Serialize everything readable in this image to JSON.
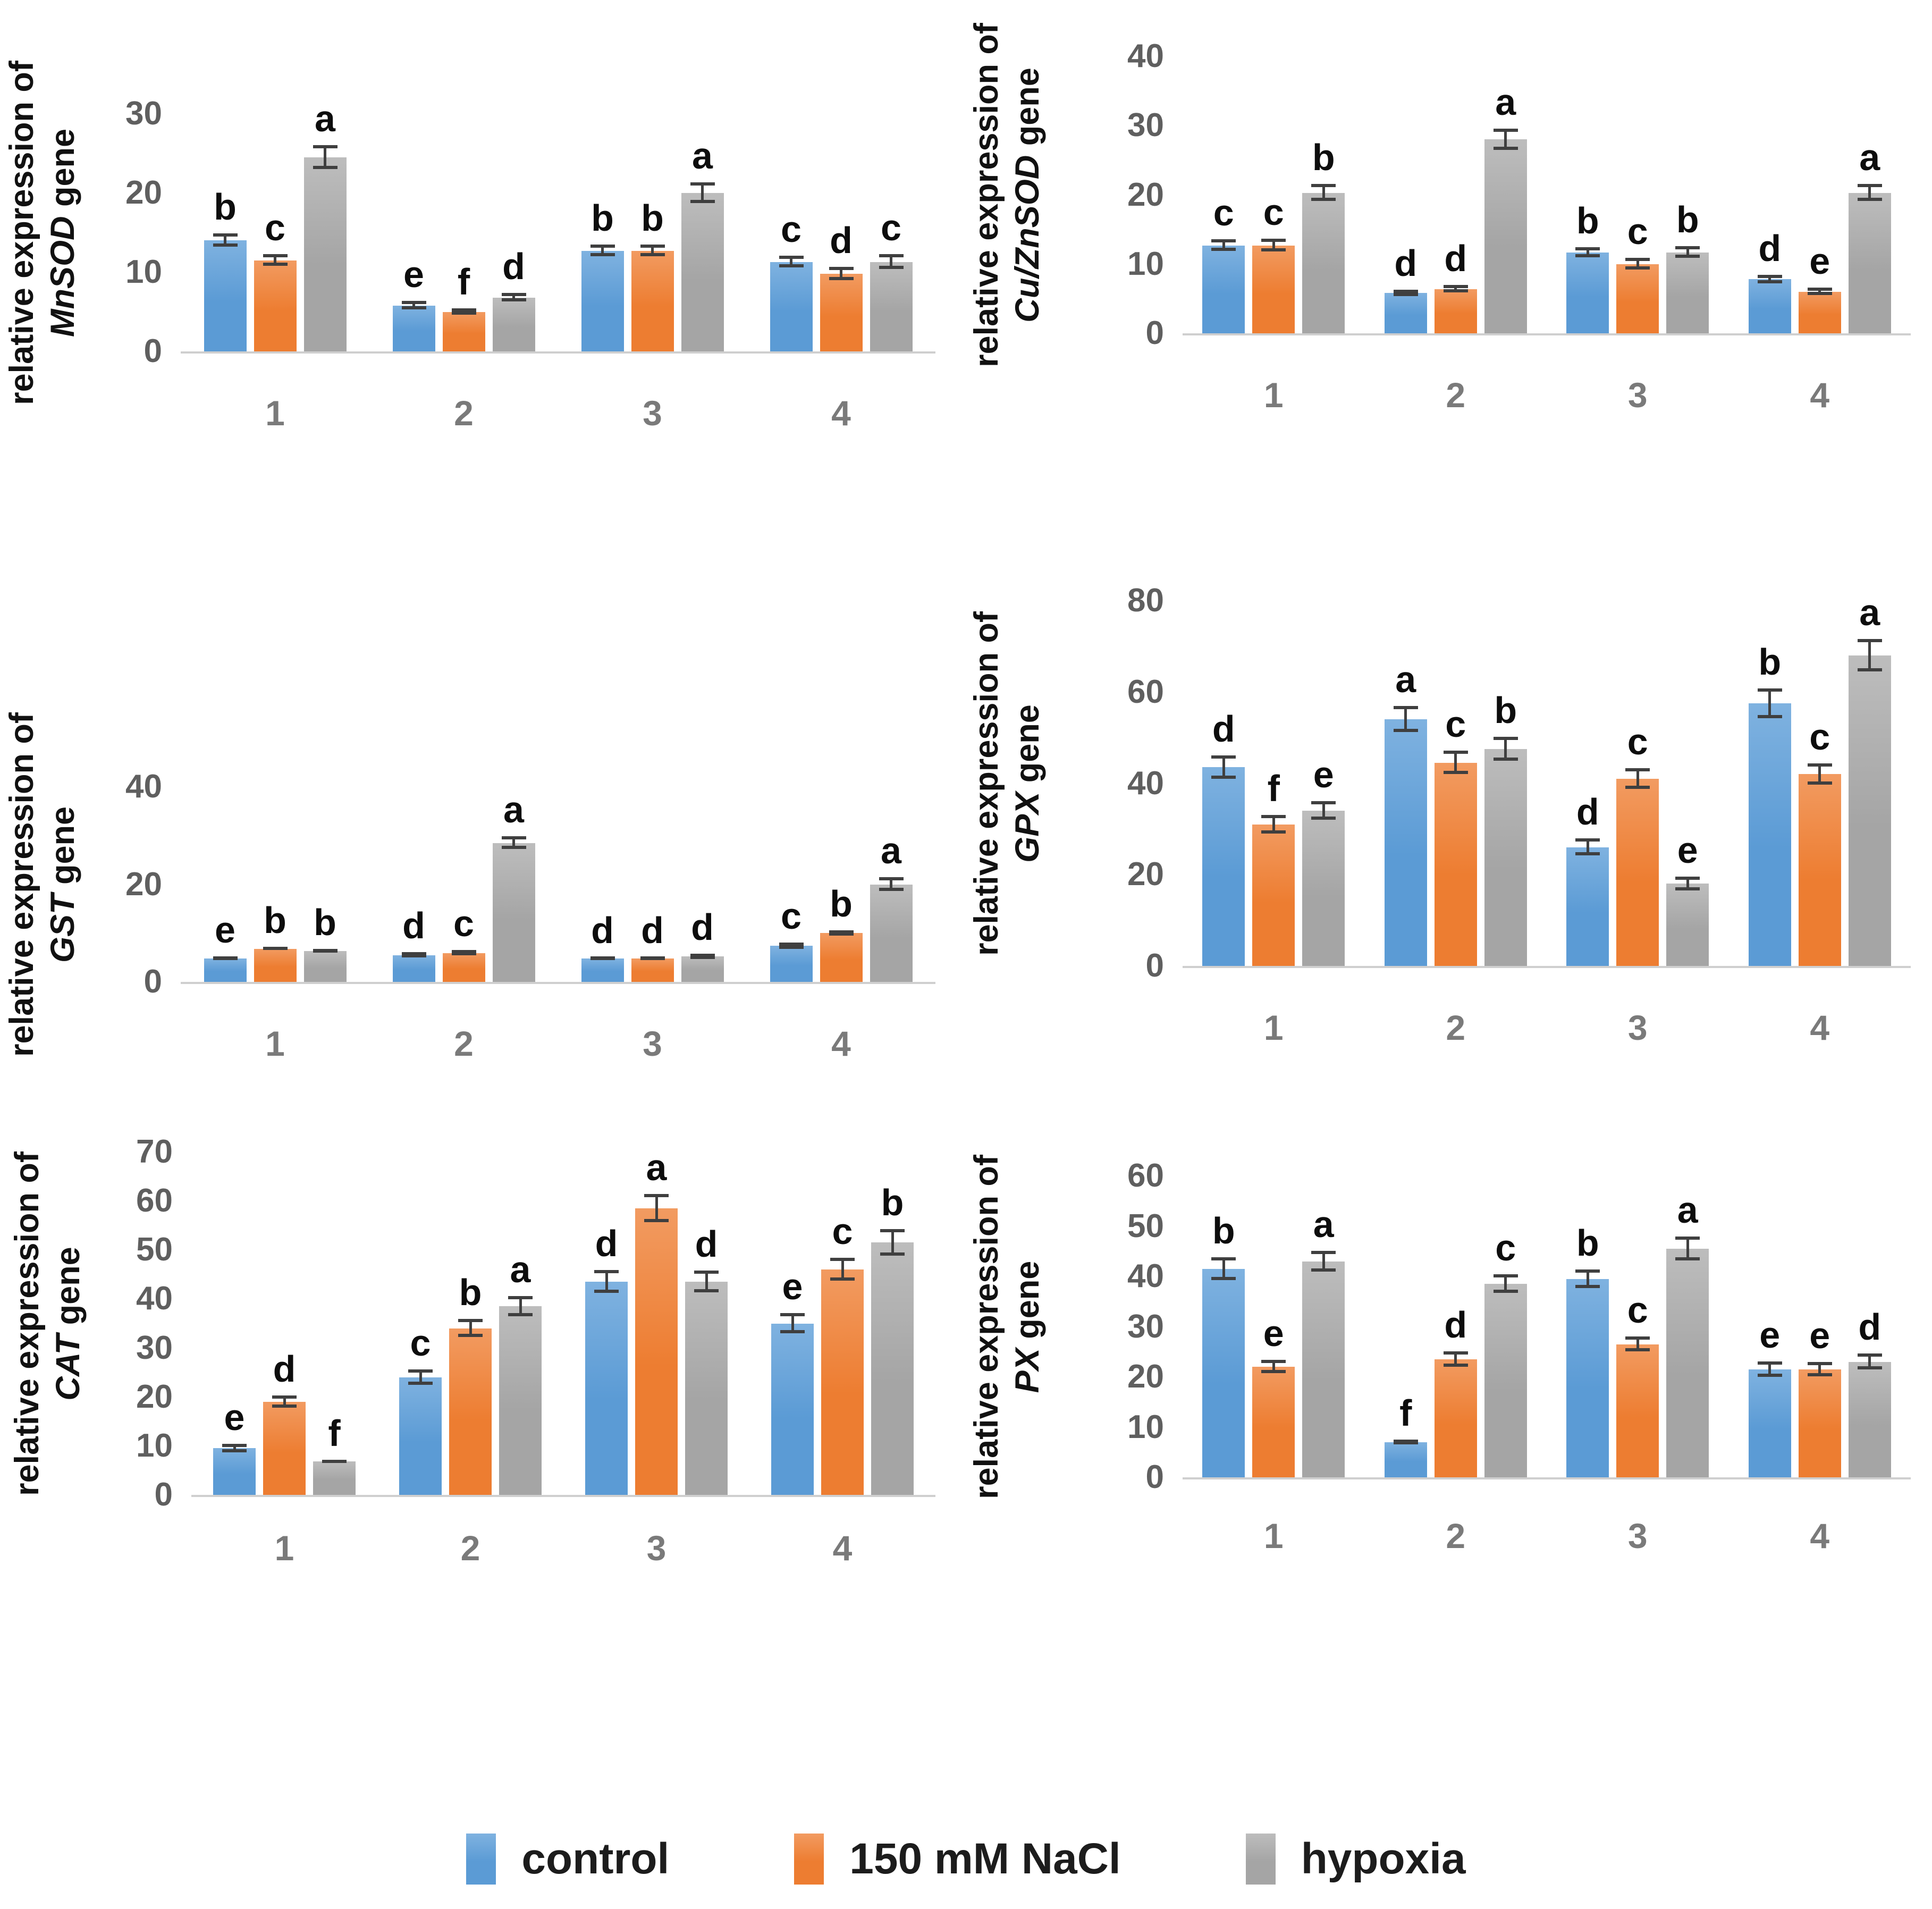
{
  "colors": {
    "control": "#5B9BD5",
    "control_light": "#7fb2e0",
    "nacl": "#ED7D31",
    "nacl_light": "#f29b61",
    "hypoxia": "#A5A5A5",
    "hypoxia_light": "#bdbdbd",
    "tick_label": "#5f5f5f",
    "category_label": "#7a7a7a",
    "sig_letter": "#0d0d0d",
    "error_bar": "#3f3f3f",
    "axis_line": "#cfcfcf"
  },
  "legend": {
    "items": [
      {
        "label": "control",
        "color_key": "control"
      },
      {
        "label": "150 mM NaCl",
        "color_key": "nacl"
      },
      {
        "label": "hypoxia",
        "color_key": "hypoxia"
      }
    ]
  },
  "chart_data": [
    {
      "id": "mnsod",
      "type": "bar",
      "ylabel_line1": "relative expression of",
      "gene": "MnSOD",
      "gene_suffix": "gene",
      "categories": [
        "1",
        "2",
        "3",
        "4"
      ],
      "ylim": [
        0,
        30
      ],
      "yticks": [
        0,
        10,
        20,
        30
      ],
      "grid": false,
      "legend_position": "shared-bottom",
      "series": [
        {
          "name": "control",
          "color_key": "control",
          "values": [
            14,
            5.8,
            12.7,
            11.3
          ],
          "errors": [
            0.8,
            0.5,
            0.7,
            0.7
          ],
          "letters": [
            "b",
            "e",
            "b",
            "c"
          ]
        },
        {
          "name": "150 mM NaCl",
          "color_key": "nacl",
          "values": [
            11.5,
            5.0,
            12.7,
            9.8
          ],
          "errors": [
            0.7,
            0.4,
            0.7,
            0.8
          ],
          "letters": [
            "c",
            "f",
            "b",
            "d"
          ]
        },
        {
          "name": "hypoxia",
          "color_key": "hypoxia",
          "values": [
            24.5,
            6.8,
            20.0,
            11.3
          ],
          "errors": [
            1.5,
            0.5,
            1.3,
            0.9
          ],
          "letters": [
            "a",
            "d",
            "a",
            "c"
          ]
        }
      ]
    },
    {
      "id": "cuznsod",
      "type": "bar",
      "ylabel_line1": "relative expression of",
      "gene": "Cu/ZnSOD",
      "gene_suffix": "gene",
      "categories": [
        "1",
        "2",
        "3",
        "4"
      ],
      "ylim": [
        0,
        40
      ],
      "yticks": [
        0,
        10,
        20,
        30,
        40
      ],
      "grid": false,
      "legend_position": "shared-bottom",
      "series": [
        {
          "name": "control",
          "color_key": "control",
          "values": [
            12.7,
            5.8,
            11.7,
            7.8
          ],
          "errors": [
            0.8,
            0.4,
            0.7,
            0.6
          ],
          "letters": [
            "c",
            "d",
            "b",
            "d"
          ]
        },
        {
          "name": "150 mM NaCl",
          "color_key": "nacl",
          "values": [
            12.7,
            6.4,
            10.0,
            6.0
          ],
          "errors": [
            0.9,
            0.5,
            0.8,
            0.5
          ],
          "letters": [
            "c",
            "d",
            "c",
            "e"
          ]
        },
        {
          "name": "hypoxia",
          "color_key": "hypoxia",
          "values": [
            20.3,
            28.0,
            11.7,
            20.3
          ],
          "errors": [
            1.2,
            1.5,
            0.8,
            1.2
          ],
          "letters": [
            "b",
            "a",
            "b",
            "a"
          ]
        }
      ]
    },
    {
      "id": "gst",
      "type": "bar",
      "ylabel_line1": "relative expression of",
      "gene": "GST",
      "gene_suffix": "gene",
      "categories": [
        "1",
        "2",
        "3",
        "4"
      ],
      "ylim": [
        0,
        40
      ],
      "yticks": [
        0,
        20,
        40
      ],
      "grid": false,
      "legend_position": "shared-bottom",
      "series": [
        {
          "name": "control",
          "color_key": "control",
          "values": [
            4.8,
            5.5,
            4.8,
            7.4
          ],
          "errors": [
            0.3,
            0.5,
            0.2,
            0.6
          ],
          "letters": [
            "e",
            "d",
            "d",
            "c"
          ]
        },
        {
          "name": "150 mM NaCl",
          "color_key": "nacl",
          "values": [
            6.8,
            5.9,
            4.8,
            10.0
          ],
          "errors": [
            0.3,
            0.5,
            0.2,
            0.5
          ],
          "letters": [
            "b",
            "c",
            "d",
            "b"
          ]
        },
        {
          "name": "hypoxia",
          "color_key": "hypoxia",
          "values": [
            6.3,
            28.5,
            5.2,
            20.0
          ],
          "errors": [
            0.3,
            1.3,
            0.5,
            1.4
          ],
          "letters": [
            "b",
            "a",
            "d",
            "a"
          ]
        }
      ]
    },
    {
      "id": "gpx",
      "type": "bar",
      "ylabel_line1": "relative expression of",
      "gene": "GPX",
      "gene_suffix": "gene",
      "categories": [
        "1",
        "2",
        "3",
        "4"
      ],
      "ylim": [
        0,
        80
      ],
      "yticks": [
        0,
        20,
        40,
        60,
        80
      ],
      "grid": false,
      "legend_position": "shared-bottom",
      "series": [
        {
          "name": "control",
          "color_key": "control",
          "values": [
            43.5,
            54.0,
            26.0,
            57.5
          ],
          "errors": [
            2.5,
            2.8,
            1.8,
            3.2
          ],
          "letters": [
            "d",
            "a",
            "d",
            "b"
          ]
        },
        {
          "name": "150 mM NaCl",
          "color_key": "nacl",
          "values": [
            31.0,
            44.5,
            41.0,
            42.0
          ],
          "errors": [
            2.0,
            2.5,
            2.2,
            2.3
          ],
          "letters": [
            "f",
            "c",
            "c",
            "c"
          ]
        },
        {
          "name": "hypoxia",
          "color_key": "hypoxia",
          "values": [
            34.0,
            47.5,
            18.0,
            68.0
          ],
          "errors": [
            2.0,
            2.6,
            1.5,
            3.5
          ],
          "letters": [
            "e",
            "b",
            "e",
            "a"
          ]
        }
      ]
    },
    {
      "id": "cat",
      "type": "bar",
      "ylabel_line1": "relative expression of",
      "gene": "CAT",
      "gene_suffix": "gene",
      "categories": [
        "1",
        "2",
        "3",
        "4"
      ],
      "ylim": [
        0,
        70
      ],
      "yticks": [
        0,
        10,
        20,
        30,
        40,
        50,
        60,
        70
      ],
      "grid": false,
      "legend_position": "shared-bottom",
      "series": [
        {
          "name": "control",
          "color_key": "control",
          "values": [
            9.5,
            24.0,
            43.5,
            35.0
          ],
          "errors": [
            0.8,
            1.5,
            2.3,
            2.0
          ],
          "letters": [
            "e",
            "c",
            "d",
            "e"
          ]
        },
        {
          "name": "150 mM NaCl",
          "color_key": "nacl",
          "values": [
            19.0,
            34.0,
            58.5,
            46.0
          ],
          "errors": [
            1.2,
            1.8,
            2.8,
            2.3
          ],
          "letters": [
            "d",
            "b",
            "a",
            "c"
          ]
        },
        {
          "name": "hypoxia",
          "color_key": "hypoxia",
          "values": [
            6.8,
            38.5,
            43.5,
            51.5
          ],
          "errors": [
            0.3,
            2.0,
            2.2,
            2.7
          ],
          "letters": [
            "f",
            "a",
            "d",
            "b"
          ]
        }
      ]
    },
    {
      "id": "px",
      "type": "bar",
      "ylabel_line1": "relative expression of",
      "gene": "PX",
      "gene_suffix": "gene",
      "categories": [
        "1",
        "2",
        "3",
        "4"
      ],
      "ylim": [
        0,
        60
      ],
      "yticks": [
        0,
        10,
        20,
        30,
        40,
        50,
        60
      ],
      "grid": false,
      "legend_position": "shared-bottom",
      "series": [
        {
          "name": "control",
          "color_key": "control",
          "values": [
            41.5,
            7.0,
            39.5,
            21.5
          ],
          "errors": [
            2.2,
            0.4,
            1.8,
            1.5
          ],
          "letters": [
            "b",
            "f",
            "b",
            "e"
          ]
        },
        {
          "name": "150 mM NaCl",
          "color_key": "nacl",
          "values": [
            22.0,
            23.5,
            26.5,
            21.5
          ],
          "errors": [
            1.3,
            1.5,
            1.4,
            1.4
          ],
          "letters": [
            "e",
            "d",
            "c",
            "e"
          ]
        },
        {
          "name": "hypoxia",
          "color_key": "hypoxia",
          "values": [
            43.0,
            38.5,
            45.5,
            23.0
          ],
          "errors": [
            2.0,
            1.8,
            2.3,
            1.5
          ],
          "letters": [
            "a",
            "c",
            "a",
            "d"
          ]
        }
      ]
    }
  ]
}
